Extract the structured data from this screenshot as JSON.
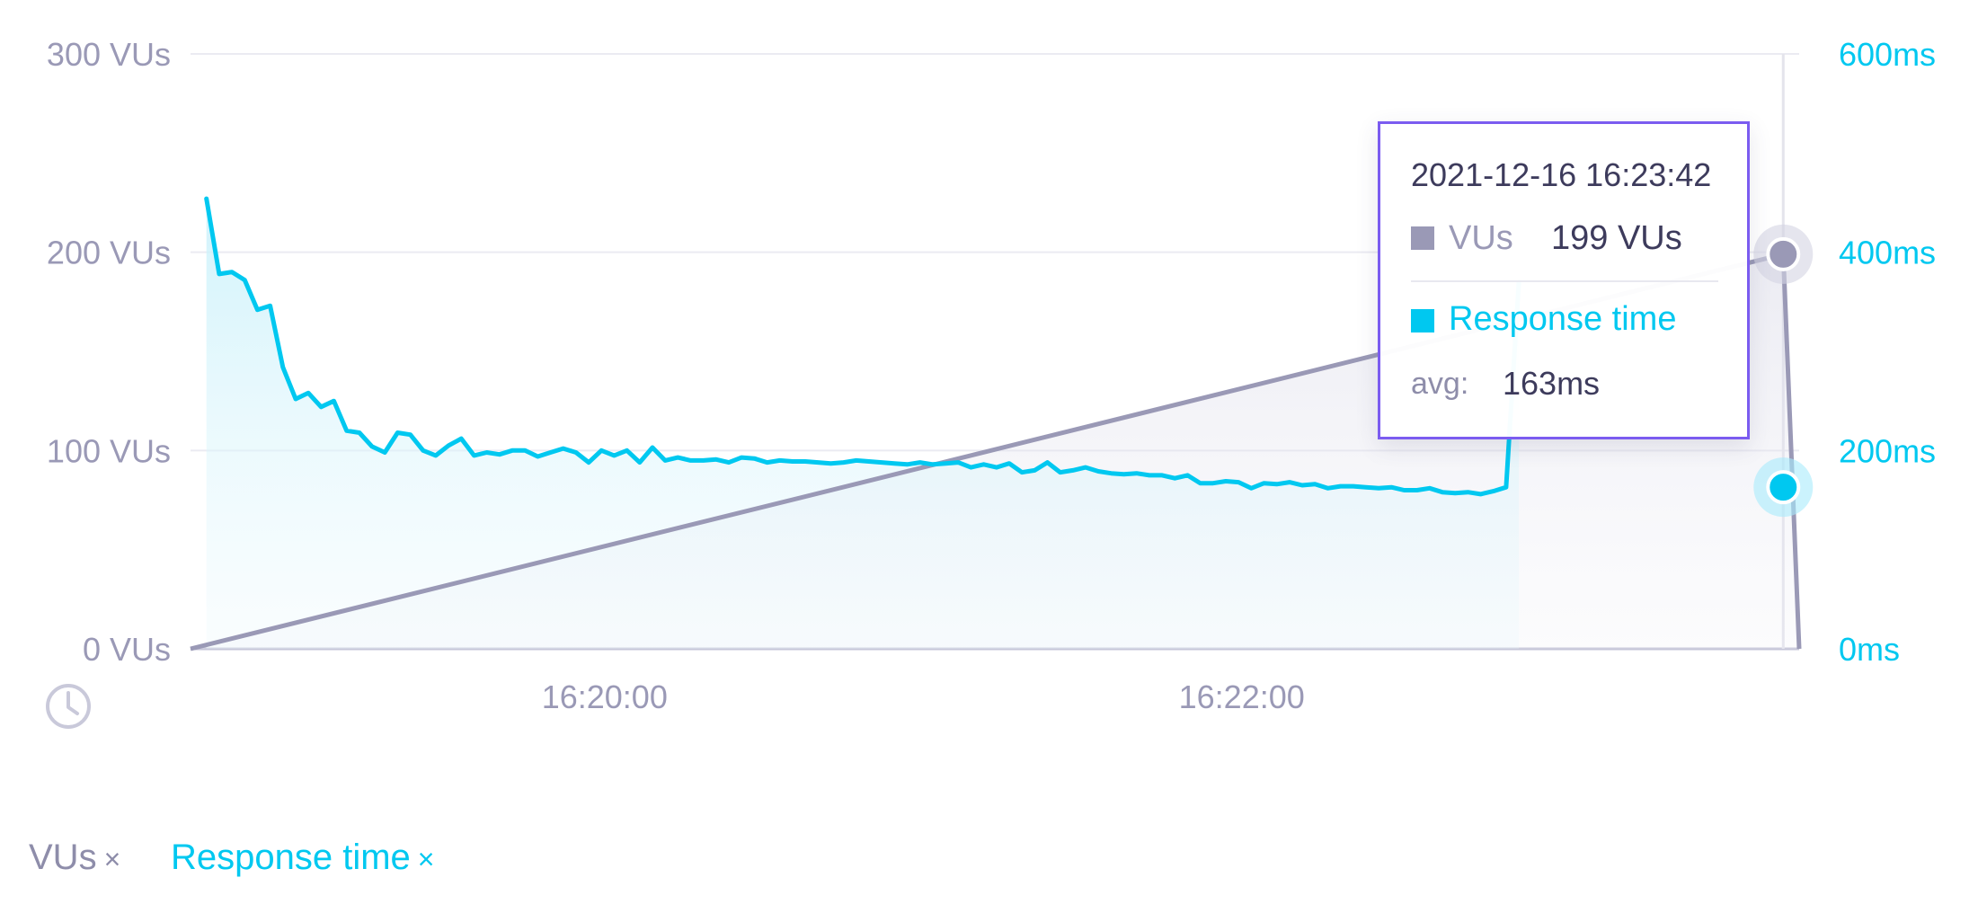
{
  "colors": {
    "vus": "#9a99b6",
    "vus_dark": "#8e8daa",
    "response_time": "#00c8f0",
    "tooltip_border": "#7b5cf0",
    "grid": "#ebebf2",
    "axis_text": "#9a99b6"
  },
  "icons": {
    "time_axis": "clock-icon"
  },
  "chart_data": {
    "type": "line",
    "x_unit": "time (HH:MM:SS, 2021-12-16)",
    "x_range": [
      "16:18:42",
      "16:23:45"
    ],
    "x_ticks": [
      "16:20:00",
      "16:22:00"
    ],
    "y_left": {
      "ticks": [
        "300 VUs",
        "200 VUs",
        "100 VUs",
        "0 VUs"
      ],
      "range": [
        0,
        300
      ],
      "unit": "VUs"
    },
    "y_right": {
      "ticks": [
        "600ms",
        "400ms",
        "200ms",
        "0ms"
      ],
      "range": [
        0,
        600
      ],
      "unit": "ms"
    },
    "grid": true,
    "series": [
      {
        "name": "VUs",
        "axis": "left",
        "style": "line-area",
        "points": [
          [
            "16:18:42",
            0
          ],
          [
            "16:23:42",
            199
          ],
          [
            "16:23:45",
            0
          ]
        ]
      },
      {
        "name": "Response time",
        "axis": "right",
        "style": "line-area",
        "start": "16:18:45",
        "step_seconds": 2.4,
        "values": [
          454,
          378,
          380,
          372,
          342,
          346,
          284,
          252,
          258,
          244,
          250,
          220,
          218,
          204,
          198,
          218,
          216,
          200,
          195,
          205,
          212,
          195,
          198,
          196,
          200,
          200,
          194,
          198,
          202,
          198,
          188,
          200,
          195,
          200,
          188,
          203,
          190,
          193,
          190,
          190,
          191,
          188,
          193,
          192,
          188,
          190,
          189,
          189,
          188,
          187,
          188,
          190,
          189,
          188,
          187,
          186,
          188,
          186,
          187,
          188,
          183,
          186,
          183,
          187,
          178,
          180,
          188,
          178,
          180,
          183,
          179,
          177,
          176,
          177,
          175,
          175,
          172,
          175,
          167,
          167,
          169,
          168,
          162,
          167,
          166,
          168,
          165,
          166,
          162,
          164,
          164,
          163,
          162,
          163,
          160,
          160,
          162,
          158,
          157,
          158,
          156,
          159,
          163,
          370
        ]
      }
    ]
  },
  "tooltip": {
    "timestamp": "2021-12-16 16:23:42",
    "vus_label": "VUs",
    "vus_value": "199 VUs",
    "rt_label": "Response time",
    "avg_label": "avg:",
    "avg_value": "163ms",
    "hover_time": "16:23:42",
    "hover_vus": 199,
    "hover_rt_ms": 163
  },
  "legend": {
    "vus_label": "VUs",
    "rt_label": "Response time",
    "remove_symbol": "×"
  }
}
